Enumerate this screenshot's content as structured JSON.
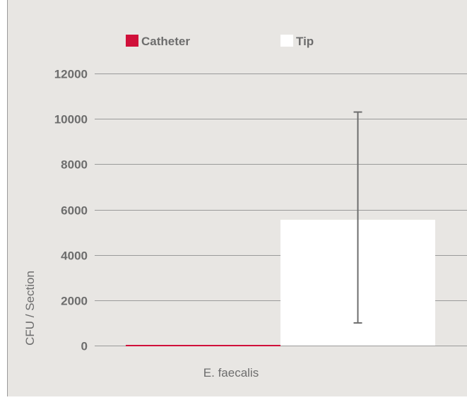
{
  "chart_data": {
    "type": "bar",
    "categories": [
      "E. faecalis"
    ],
    "series": [
      {
        "name": "Catheter",
        "values": [
          0
        ],
        "color": "#d0103a"
      },
      {
        "name": "Tip",
        "values": [
          5550
        ],
        "color": "#ffffff",
        "error_bar": [
          1000,
          10300
        ]
      }
    ],
    "title": "",
    "xlabel": "",
    "ylabel": "CFU / Section",
    "ylim": [
      0,
      12000
    ],
    "yticks": [
      0,
      2000,
      4000,
      6000,
      8000,
      10000,
      12000
    ],
    "grid": true,
    "legend_position": "top",
    "colors": {
      "background": "#e8e6e3",
      "gridline": "#9a9a9a",
      "error_bar": "#6d6d6d",
      "text": "#6d6d6d"
    }
  }
}
